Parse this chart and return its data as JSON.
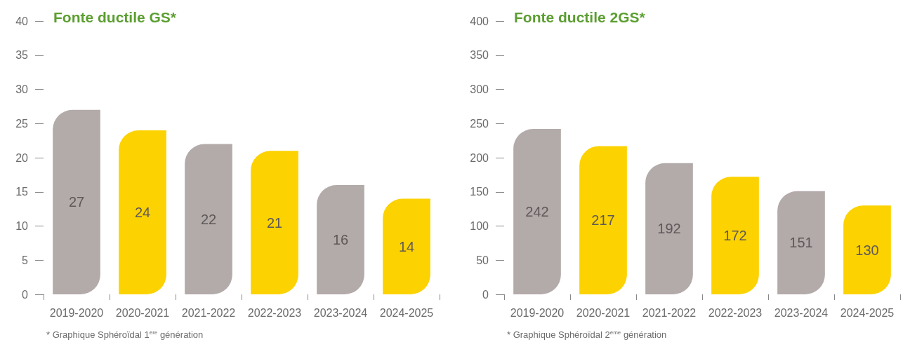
{
  "chart_data": [
    {
      "type": "bar",
      "title": "Fonte ductile GS*",
      "categories": [
        "2019-2020",
        "2020-2021",
        "2021-2022",
        "2022-2023",
        "2023-2024",
        "2024-2025"
      ],
      "values": [
        27,
        24,
        22,
        21,
        16,
        14
      ],
      "colors": [
        "#b3aaaa",
        "#fcd200",
        "#b3aaaa",
        "#fcd200",
        "#b3aaaa",
        "#fcd200"
      ],
      "ylim": [
        0,
        40
      ],
      "yticks": [
        0,
        5,
        10,
        15,
        20,
        25,
        30,
        35,
        40
      ],
      "data_labels": true,
      "annotations": [
        "* Graphique Sphéroïdal 1$^{ère}$ génération"
      ]
    },
    {
      "type": "bar",
      "title": "Fonte ductile 2GS*",
      "categories": [
        "2019-2020",
        "2020-2021",
        "2021-2022",
        "2022-2023",
        "2023-2024",
        "2024-2025"
      ],
      "values": [
        242,
        217,
        192,
        172,
        151,
        130
      ],
      "colors": [
        "#b3aaaa",
        "#fcd200",
        "#b3aaaa",
        "#fcd200",
        "#b3aaaa",
        "#fcd200"
      ],
      "ylim": [
        0,
        400
      ],
      "yticks": [
        0,
        50,
        100,
        150,
        200,
        250,
        300,
        350,
        400
      ],
      "data_labels": true,
      "annotations": [
        "* Graphique Sphéroïdal 2$^{ème}$ génération"
      ]
    }
  ]
}
